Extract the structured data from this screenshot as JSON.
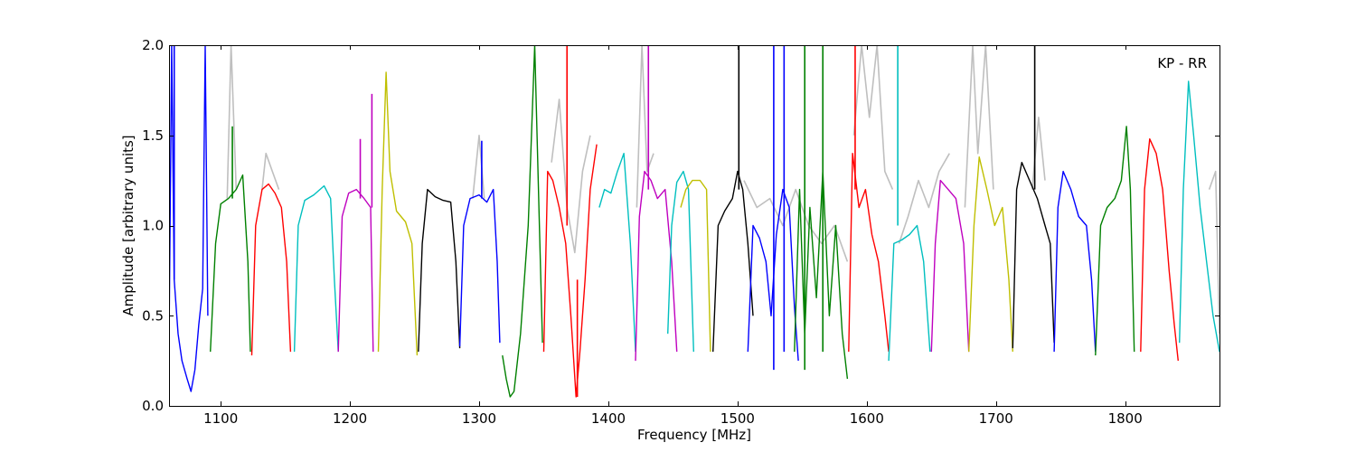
{
  "chart_data": {
    "type": "line",
    "title": "",
    "xlabel": "Frequency [MHz]",
    "ylabel": "Amplitude [arbitrary units]",
    "xlim": [
      1060,
      1873
    ],
    "ylim": [
      0,
      2.0
    ],
    "x_ticks": [
      1100,
      1200,
      1300,
      1400,
      1500,
      1600,
      1700,
      1800
    ],
    "x_tick_labels": [
      "1100",
      "1200",
      "1300",
      "1400",
      "1500",
      "1600",
      "1700",
      "1800"
    ],
    "y_ticks": [
      0.0,
      0.5,
      1.0,
      1.5,
      2.0
    ],
    "y_tick_labels": [
      "0.0",
      "0.5",
      "1.0",
      "1.5",
      "2.0"
    ],
    "grid": false,
    "annotation": "KP - RR",
    "annotation_position": "top-right",
    "colors": {
      "unflagged": "#bfbfbf",
      "b": "#0000ff",
      "g": "#008000",
      "r": "#ff0000",
      "c": "#00bfbf",
      "m": "#bf00bf",
      "y": "#bfbf00",
      "k": "#000000"
    },
    "bands": [
      {
        "color": "b",
        "x": [
          1060,
          1062,
          1064,
          1067,
          1070,
          1074,
          1077,
          1080,
          1083,
          1086,
          1088,
          1090
        ],
        "y": [
          0.35,
          2.0,
          0.7,
          0.4,
          0.25,
          0.15,
          0.08,
          0.2,
          0.45,
          0.65,
          2.0,
          0.5
        ]
      },
      {
        "color": "g",
        "x": [
          1092,
          1096,
          1100,
          1106,
          1112,
          1117,
          1121,
          1123
        ],
        "y": [
          0.3,
          0.9,
          1.12,
          1.15,
          1.2,
          1.28,
          0.8,
          0.3
        ]
      },
      {
        "color": "r",
        "x": [
          1124,
          1127,
          1132,
          1137,
          1142,
          1147,
          1151,
          1154
        ],
        "y": [
          0.28,
          1.0,
          1.2,
          1.23,
          1.18,
          1.1,
          0.8,
          0.3
        ]
      },
      {
        "color": "c",
        "x": [
          1157,
          1160,
          1165,
          1172,
          1180,
          1185,
          1188,
          1191
        ],
        "y": [
          0.3,
          1.0,
          1.14,
          1.17,
          1.22,
          1.15,
          0.7,
          0.3
        ]
      },
      {
        "color": "m",
        "x": [
          1191,
          1194,
          1199,
          1205,
          1211,
          1216,
          1218
        ],
        "y": [
          0.3,
          1.05,
          1.18,
          1.2,
          1.15,
          1.1,
          0.3
        ]
      },
      {
        "color": "y",
        "x": [
          1222,
          1225,
          1228,
          1231,
          1236,
          1243,
          1248,
          1252
        ],
        "y": [
          0.3,
          1.2,
          1.85,
          1.3,
          1.08,
          1.02,
          0.9,
          0.28
        ]
      },
      {
        "color": "k",
        "x": [
          1253,
          1256,
          1260,
          1266,
          1272,
          1278,
          1282,
          1285
        ],
        "y": [
          0.3,
          0.9,
          1.2,
          1.16,
          1.14,
          1.13,
          0.8,
          0.32
        ]
      },
      {
        "color": "b",
        "x": [
          1285,
          1288,
          1293,
          1300,
          1306,
          1311,
          1314,
          1316
        ],
        "y": [
          0.33,
          1.0,
          1.15,
          1.17,
          1.13,
          1.2,
          0.8,
          0.35
        ]
      },
      {
        "color": "g",
        "x": [
          1318,
          1321,
          1324,
          1327,
          1332,
          1338,
          1343,
          1347,
          1349
        ],
        "y": [
          0.28,
          0.15,
          0.05,
          0.08,
          0.4,
          1.0,
          2.0,
          0.9,
          0.35
        ]
      },
      {
        "color": "r",
        "x": [
          1350,
          1353,
          1357,
          1362,
          1367,
          1371,
          1375,
          1378,
          1382,
          1386,
          1391
        ],
        "y": [
          0.3,
          1.3,
          1.25,
          1.1,
          0.9,
          0.5,
          0.05,
          0.3,
          0.7,
          1.2,
          1.45
        ]
      },
      {
        "color": "c",
        "x": [
          1393,
          1397,
          1402,
          1407,
          1412,
          1417,
          1421
        ],
        "y": [
          1.1,
          1.2,
          1.18,
          1.3,
          1.4,
          0.9,
          0.3
        ]
      },
      {
        "color": "m",
        "x": [
          1421,
          1424,
          1428,
          1433,
          1438,
          1444,
          1449,
          1453
        ],
        "y": [
          0.25,
          1.05,
          1.3,
          1.25,
          1.15,
          1.2,
          0.8,
          0.3
        ]
      },
      {
        "color": "c",
        "x": [
          1446,
          1449,
          1453,
          1458,
          1462,
          1466
        ],
        "y": [
          0.4,
          1.0,
          1.24,
          1.3,
          1.2,
          0.3
        ]
      },
      {
        "color": "y",
        "x": [
          1456,
          1460,
          1465,
          1471,
          1476,
          1479
        ],
        "y": [
          1.1,
          1.2,
          1.25,
          1.25,
          1.2,
          0.3
        ]
      },
      {
        "color": "k",
        "x": [
          1481,
          1485,
          1490,
          1496,
          1500,
          1504,
          1508,
          1512
        ],
        "y": [
          0.3,
          1.0,
          1.08,
          1.15,
          1.3,
          1.2,
          0.9,
          0.5
        ]
      },
      {
        "color": "b",
        "x": [
          1508,
          1512,
          1517,
          1522,
          1526,
          1530,
          1535,
          1540,
          1544,
          1547
        ],
        "y": [
          0.3,
          1.0,
          0.93,
          0.8,
          0.5,
          0.95,
          1.2,
          1.1,
          0.55,
          0.25
        ]
      },
      {
        "color": "g",
        "x": [
          1544,
          1548,
          1552,
          1556,
          1561,
          1566,
          1571,
          1576,
          1581,
          1585
        ],
        "y": [
          0.3,
          1.2,
          0.4,
          1.1,
          0.6,
          1.3,
          0.5,
          1.0,
          0.4,
          0.15
        ]
      },
      {
        "color": "r",
        "x": [
          1586,
          1589,
          1594,
          1599,
          1604,
          1609,
          1614,
          1617
        ],
        "y": [
          0.3,
          1.4,
          1.1,
          1.2,
          0.95,
          0.8,
          0.5,
          0.3
        ]
      },
      {
        "color": "c",
        "x": [
          1617,
          1621,
          1627,
          1633,
          1639,
          1644,
          1649
        ],
        "y": [
          0.25,
          0.9,
          0.92,
          0.95,
          1.0,
          0.8,
          0.3
        ]
      },
      {
        "color": "m",
        "x": [
          1650,
          1653,
          1657,
          1663,
          1669,
          1675,
          1679
        ],
        "y": [
          0.3,
          0.9,
          1.25,
          1.2,
          1.15,
          0.9,
          0.3
        ]
      },
      {
        "color": "y",
        "x": [
          1679,
          1683,
          1687,
          1693,
          1699,
          1705,
          1710,
          1713
        ],
        "y": [
          0.3,
          1.0,
          1.38,
          1.2,
          1.0,
          1.1,
          0.7,
          0.3
        ]
      },
      {
        "color": "k",
        "x": [
          1713,
          1716,
          1720,
          1726,
          1732,
          1738,
          1742,
          1745
        ],
        "y": [
          0.32,
          1.2,
          1.35,
          1.25,
          1.15,
          1.0,
          0.9,
          0.35
        ]
      },
      {
        "color": "b",
        "x": [
          1745,
          1748,
          1752,
          1758,
          1764,
          1770,
          1774,
          1777
        ],
        "y": [
          0.3,
          1.1,
          1.3,
          1.2,
          1.05,
          1.0,
          0.7,
          0.3
        ]
      },
      {
        "color": "g",
        "x": [
          1777,
          1781,
          1786,
          1792,
          1797,
          1801,
          1804,
          1807
        ],
        "y": [
          0.28,
          1.0,
          1.1,
          1.15,
          1.25,
          1.55,
          1.2,
          0.3
        ]
      },
      {
        "color": "r",
        "x": [
          1812,
          1815,
          1819,
          1824,
          1829,
          1834,
          1838,
          1841
        ],
        "y": [
          0.3,
          1.2,
          1.48,
          1.4,
          1.2,
          0.75,
          0.45,
          0.25
        ]
      },
      {
        "color": "c",
        "x": [
          1842,
          1845,
          1849,
          1853,
          1858,
          1863,
          1868,
          1873
        ],
        "y": [
          0.35,
          1.2,
          1.8,
          1.5,
          1.1,
          0.8,
          0.5,
          0.3
        ]
      }
    ],
    "unflagged": [
      {
        "x": [
          1105,
          1108,
          1112
        ],
        "y": [
          1.15,
          2.0,
          1.2
        ]
      },
      {
        "x": [
          1132,
          1135,
          1140,
          1145
        ],
        "y": [
          1.2,
          1.4,
          1.3,
          1.2
        ]
      },
      {
        "x": [
          1295,
          1300,
          1304
        ],
        "y": [
          1.15,
          1.5,
          1.15
        ]
      },
      {
        "x": [
          1356,
          1362,
          1368,
          1374,
          1380,
          1386
        ],
        "y": [
          1.35,
          1.7,
          1.1,
          0.85,
          1.3,
          1.5
        ]
      },
      {
        "x": [
          1422,
          1426,
          1430,
          1435
        ],
        "y": [
          1.1,
          2.0,
          1.3,
          1.4
        ]
      },
      {
        "x": [
          1505,
          1515,
          1525,
          1535,
          1545,
          1555,
          1565,
          1575,
          1585
        ],
        "y": [
          1.25,
          1.1,
          1.15,
          1.0,
          1.2,
          1.0,
          0.9,
          1.0,
          0.8
        ]
      },
      {
        "x": [
          1590,
          1596,
          1602,
          1608,
          1614,
          1620
        ],
        "y": [
          1.5,
          2.0,
          1.6,
          2.0,
          1.3,
          1.2
        ]
      },
      {
        "x": [
          1625,
          1632,
          1640,
          1648,
          1656,
          1664
        ],
        "y": [
          0.9,
          1.05,
          1.25,
          1.1,
          1.3,
          1.4
        ]
      },
      {
        "x": [
          1676,
          1682,
          1686,
          1692,
          1698
        ],
        "y": [
          1.1,
          2.0,
          1.4,
          2.0,
          1.2
        ]
      },
      {
        "x": [
          1728,
          1733,
          1738
        ],
        "y": [
          1.2,
          1.6,
          1.25
        ]
      },
      {
        "x": [
          1865,
          1870,
          1873
        ],
        "y": [
          1.2,
          1.3,
          0.4
        ]
      }
    ],
    "spikes": [
      {
        "color": "b",
        "x": 1064,
        "y_from": 0.7,
        "y_to": 2.0
      },
      {
        "color": "g",
        "x": 1109,
        "y_from": 1.15,
        "y_to": 1.55
      },
      {
        "color": "m",
        "x": 1208,
        "y_from": 1.15,
        "y_to": 1.48
      },
      {
        "color": "m",
        "x": 1217,
        "y_from": 1.1,
        "y_to": 1.73
      },
      {
        "color": "b",
        "x": 1302,
        "y_from": 1.15,
        "y_to": 1.47
      },
      {
        "color": "r",
        "x": 1368,
        "y_from": 1.0,
        "y_to": 2.0
      },
      {
        "color": "r",
        "x": 1376,
        "y_from": 0.05,
        "y_to": 0.7
      },
      {
        "color": "m",
        "x": 1431,
        "y_from": 1.2,
        "y_to": 2.0
      },
      {
        "color": "k",
        "x": 1501,
        "y_from": 1.2,
        "y_to": 2.0
      },
      {
        "color": "b",
        "x": 1528,
        "y_from": 0.2,
        "y_to": 2.0
      },
      {
        "color": "b",
        "x": 1536,
        "y_from": 0.3,
        "y_to": 2.0
      },
      {
        "color": "g",
        "x": 1552,
        "y_from": 0.2,
        "y_to": 2.0
      },
      {
        "color": "g",
        "x": 1566,
        "y_from": 0.3,
        "y_to": 2.0
      },
      {
        "color": "r",
        "x": 1591,
        "y_from": 1.2,
        "y_to": 2.0
      },
      {
        "color": "c",
        "x": 1624,
        "y_from": 1.0,
        "y_to": 2.0
      },
      {
        "color": "k",
        "x": 1730,
        "y_from": 1.2,
        "y_to": 2.0
      }
    ]
  }
}
